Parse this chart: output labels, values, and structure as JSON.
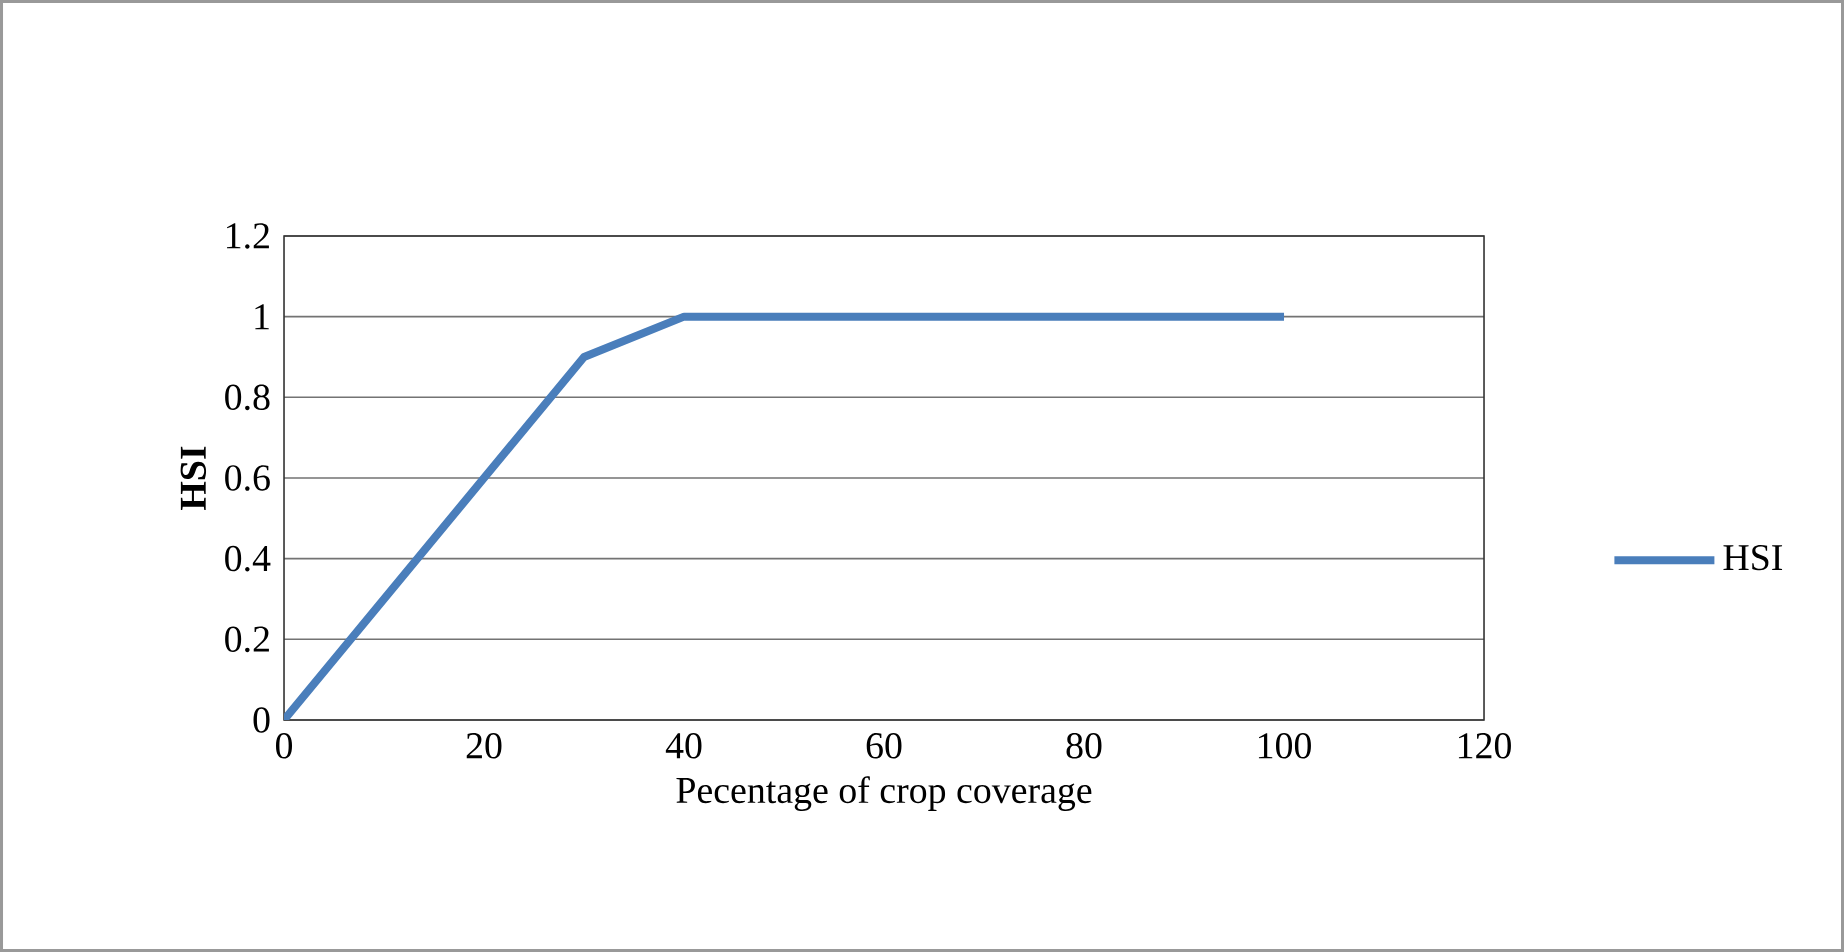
{
  "chart_data": {
    "type": "line",
    "xlabel": "Pecentage of crop coverage",
    "ylabel": "HSI",
    "series": [
      {
        "name": "HSI",
        "color": "#4a7ebb",
        "x": [
          0,
          30,
          40,
          100
        ],
        "values": [
          0,
          0.9,
          1,
          1
        ]
      }
    ],
    "xlim": [
      0,
      120
    ],
    "ylim": [
      0,
      1.2
    ],
    "xticks": [
      0,
      20,
      40,
      60,
      80,
      100,
      120
    ],
    "yticks": [
      0,
      0.2,
      0.4,
      0.6,
      0.8,
      1,
      1.2
    ],
    "grid": "y",
    "legend": "right",
    "marker": "none",
    "line_style": "solid"
  }
}
